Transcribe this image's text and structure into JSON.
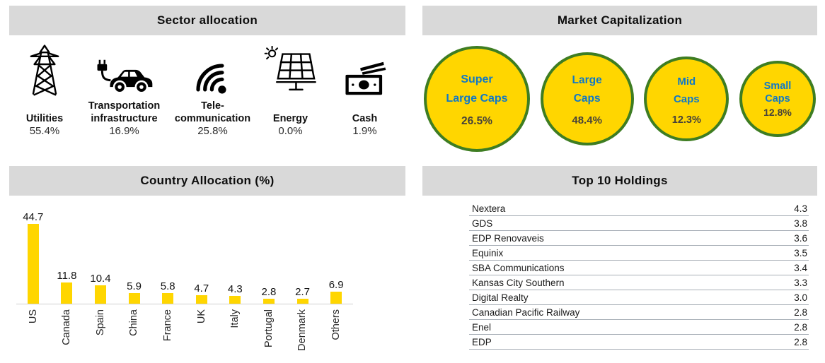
{
  "colors": {
    "header_bg": "#D9D9D9",
    "yellow": "#FFD600",
    "bubble_border_green": "#3E7D22",
    "bubble_label_blue": "#0F78C8",
    "table_line": "#A7AEB6"
  },
  "panels": {
    "sector": {
      "title": "Sector allocation",
      "items": [
        {
          "icon": "transmission-tower-icon",
          "label_lines": [
            "Utilities"
          ],
          "pct": "55.4%"
        },
        {
          "icon": "electric-car-icon",
          "label_lines": [
            "Transportation",
            "infrastructure"
          ],
          "pct": "16.9%"
        },
        {
          "icon": "signal-waves-icon",
          "label_lines": [
            "Tele-",
            "communication"
          ],
          "pct": "25.8%"
        },
        {
          "icon": "solar-panel-icon",
          "label_lines": [
            "Energy"
          ],
          "pct": "0.0%"
        },
        {
          "icon": "banknotes-icon",
          "label_lines": [
            "Cash"
          ],
          "pct": "1.9%"
        }
      ]
    },
    "market_cap": {
      "title": "Market Capitalization",
      "bubbles": [
        {
          "label_lines": [
            "Super",
            "Large Caps"
          ],
          "pct": "26.5%",
          "diameter": 150,
          "font": 16,
          "line_height": 1.7,
          "pct_gap": 10
        },
        {
          "label_lines": [
            "Large",
            "Caps"
          ],
          "pct": "48.4%",
          "diameter": 132,
          "font": 15.5,
          "line_height": 1.7,
          "pct_gap": 9
        },
        {
          "label_lines": [
            "Mid",
            "Caps"
          ],
          "pct": "12.3%",
          "diameter": 120,
          "font": 15,
          "line_height": 1.7,
          "pct_gap": 8
        },
        {
          "label_lines": [
            "Small",
            "Caps"
          ],
          "pct": "12.8%",
          "diameter": 108,
          "font": 14.5,
          "line_height": 1.25,
          "pct_gap": 2
        }
      ]
    },
    "country": {
      "title": "Country Allocation (%)"
    },
    "holdings": {
      "title": "Top 10 Holdings",
      "rows": [
        {
          "name": "Nextera",
          "value": "4.3"
        },
        {
          "name": "GDS",
          "value": "3.8"
        },
        {
          "name": "EDP Renovaveis",
          "value": "3.6"
        },
        {
          "name": "Equinix",
          "value": "3.5"
        },
        {
          "name": "SBA Communications",
          "value": "3.4"
        },
        {
          "name": "Kansas City Southern",
          "value": "3.3"
        },
        {
          "name": "Digital Realty",
          "value": "3.0"
        },
        {
          "name": "Canadian Pacific Railway",
          "value": "2.8"
        },
        {
          "name": "Enel",
          "value": "2.8"
        },
        {
          "name": "EDP",
          "value": "2.8"
        }
      ]
    }
  },
  "chart_data": [
    {
      "type": "table",
      "title": "Sector allocation",
      "categories": [
        "Utilities",
        "Transportation infrastructure",
        "Tele-communication",
        "Energy",
        "Cash"
      ],
      "values": [
        55.4,
        16.9,
        25.8,
        0.0,
        1.9
      ],
      "unit": "%"
    },
    {
      "type": "bubble",
      "title": "Market Capitalization",
      "categories": [
        "Super Large Caps",
        "Large Caps",
        "Mid Caps",
        "Small Caps"
      ],
      "values": [
        26.5,
        48.4,
        12.3,
        12.8
      ],
      "unit": "%",
      "layout": "bubbles sized by cap tier, largest to smallest left to right"
    },
    {
      "type": "bar",
      "title": "Country Allocation (%)",
      "categories": [
        "US",
        "Canada",
        "Spain",
        "China",
        "France",
        "UK",
        "Italy",
        "Portugal",
        "Denmark",
        "Others"
      ],
      "values": [
        44.7,
        11.8,
        10.4,
        5.9,
        5.8,
        4.7,
        4.3,
        2.8,
        2.7,
        6.9
      ],
      "xlabel": "",
      "ylabel": "",
      "ylim": [
        0,
        48
      ],
      "grid": false,
      "data_labels": true,
      "legend": "none",
      "x_tick_rotation": 90
    },
    {
      "type": "table",
      "title": "Top 10 Holdings",
      "categories": [
        "Nextera",
        "GDS",
        "EDP Renovaveis",
        "Equinix",
        "SBA Communications",
        "Kansas City Southern",
        "Digital Realty",
        "Canadian Pacific Railway",
        "Enel",
        "EDP"
      ],
      "values": [
        4.3,
        3.8,
        3.6,
        3.5,
        3.4,
        3.3,
        3.0,
        2.8,
        2.8,
        2.8
      ]
    }
  ]
}
